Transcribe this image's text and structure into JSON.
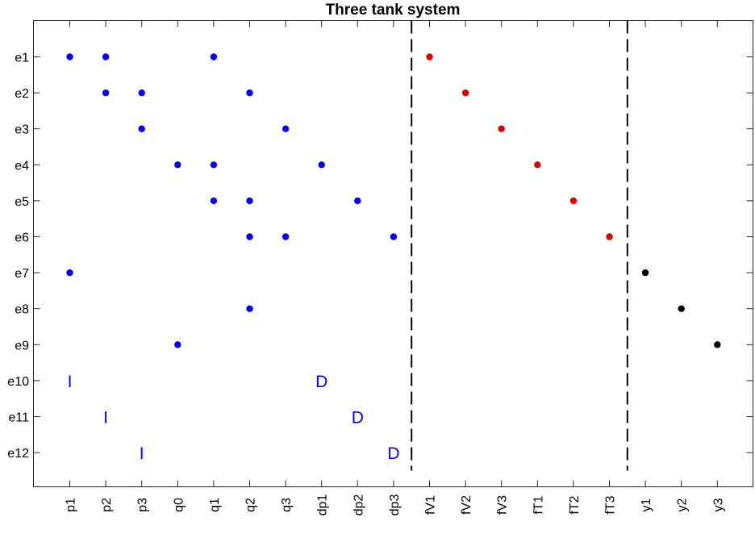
{
  "chart_data": {
    "type": "scatter",
    "title": "Three tank system",
    "x_categories": [
      "p1",
      "p2",
      "p3",
      "q0",
      "q1",
      "q2",
      "q3",
      "dp1",
      "dp2",
      "dp3",
      "fV1",
      "fV2",
      "fV3",
      "fT1",
      "fT2",
      "fT3",
      "y1",
      "y2",
      "y3"
    ],
    "y_categories": [
      "e1",
      "e2",
      "e3",
      "e4",
      "e5",
      "e6",
      "e7",
      "e8",
      "e9",
      "e10",
      "e11",
      "e12"
    ],
    "colors": {
      "unknown": "#0000ff",
      "fault": "#dd0000",
      "known": "#000000",
      "marker_text": "#0000ff"
    },
    "series": [
      {
        "group": "unknown",
        "color": "#0000ff",
        "points": [
          [
            "p1",
            "e1"
          ],
          [
            "p2",
            "e1"
          ],
          [
            "q1",
            "e1"
          ],
          [
            "p2",
            "e2"
          ],
          [
            "p3",
            "e2"
          ],
          [
            "q2",
            "e2"
          ],
          [
            "p3",
            "e3"
          ],
          [
            "q3",
            "e3"
          ],
          [
            "q0",
            "e4"
          ],
          [
            "q1",
            "e4"
          ],
          [
            "dp1",
            "e4"
          ],
          [
            "q1",
            "e5"
          ],
          [
            "q2",
            "e5"
          ],
          [
            "dp2",
            "e5"
          ],
          [
            "q2",
            "e6"
          ],
          [
            "q3",
            "e6"
          ],
          [
            "dp3",
            "e6"
          ],
          [
            "p1",
            "e7"
          ],
          [
            "q2",
            "e8"
          ],
          [
            "q0",
            "e9"
          ]
        ]
      },
      {
        "group": "fault",
        "color": "#dd0000",
        "points": [
          [
            "fV1",
            "e1"
          ],
          [
            "fV2",
            "e2"
          ],
          [
            "fV3",
            "e3"
          ],
          [
            "fT1",
            "e4"
          ],
          [
            "fT2",
            "e5"
          ],
          [
            "fT3",
            "e6"
          ]
        ]
      },
      {
        "group": "known",
        "color": "#000000",
        "points": [
          [
            "y1",
            "e7"
          ],
          [
            "y2",
            "e8"
          ],
          [
            "y3",
            "e9"
          ]
        ]
      }
    ],
    "text_markers": [
      {
        "x": "p1",
        "y": "e10",
        "text": "I"
      },
      {
        "x": "p2",
        "y": "e11",
        "text": "I"
      },
      {
        "x": "p3",
        "y": "e12",
        "text": "I"
      },
      {
        "x": "dp1",
        "y": "e10",
        "text": "D"
      },
      {
        "x": "dp2",
        "y": "e11",
        "text": "D"
      },
      {
        "x": "dp3",
        "y": "e12",
        "text": "D"
      }
    ],
    "separators_after": [
      "dp3",
      "fT3"
    ],
    "grid": false,
    "xlabel": "",
    "ylabel": ""
  }
}
